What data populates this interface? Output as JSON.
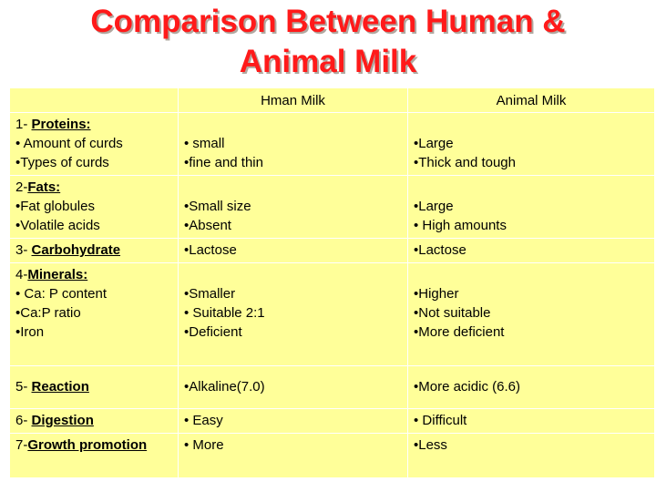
{
  "title": {
    "line1": "Comparison Between Human &",
    "line2": "Animal Milk"
  },
  "columns": {
    "blank": "",
    "human": "Hman Milk",
    "animal": "Animal Milk"
  },
  "rows": [
    {
      "num": "1- ",
      "heading": "Proteins:",
      "items": [
        "• Amount of curds",
        "•Types of curds"
      ],
      "human": [
        "• small",
        "•fine and thin"
      ],
      "animal": [
        "•Large",
        "•Thick and tough"
      ]
    },
    {
      "num": "2-",
      "heading": "Fats:",
      "items": [
        "•Fat globules",
        "•Volatile acids"
      ],
      "human": [
        "•Small size",
        "•Absent"
      ],
      "animal": [
        "•Large",
        "• High amounts"
      ]
    },
    {
      "num": "3- ",
      "heading": "Carbohydrate",
      "items": [],
      "human": [
        "•Lactose"
      ],
      "animal": [
        "•Lactose"
      ]
    },
    {
      "num": "4-",
      "heading": "Minerals:",
      "items": [
        "• Ca: P content",
        "•Ca:P ratio",
        "•Iron"
      ],
      "human": [
        "•Smaller",
        "• Suitable 2:1",
        "•Deficient"
      ],
      "animal": [
        "•Higher",
        "•Not suitable",
        "•More deficient"
      ]
    },
    {
      "num": "5- ",
      "heading": "Reaction",
      "items": [],
      "human": [
        "•Alkaline(7.0)"
      ],
      "animal": [
        "•More acidic (6.6)"
      ]
    },
    {
      "num": "6- ",
      "heading": "Digestion",
      "items": [],
      "human": [
        "• Easy"
      ],
      "animal": [
        "• Difficult"
      ]
    },
    {
      "num": "7-",
      "heading": "Growth promotion",
      "items": [],
      "human": [
        "• More"
      ],
      "animal": [
        "•Less"
      ]
    }
  ]
}
